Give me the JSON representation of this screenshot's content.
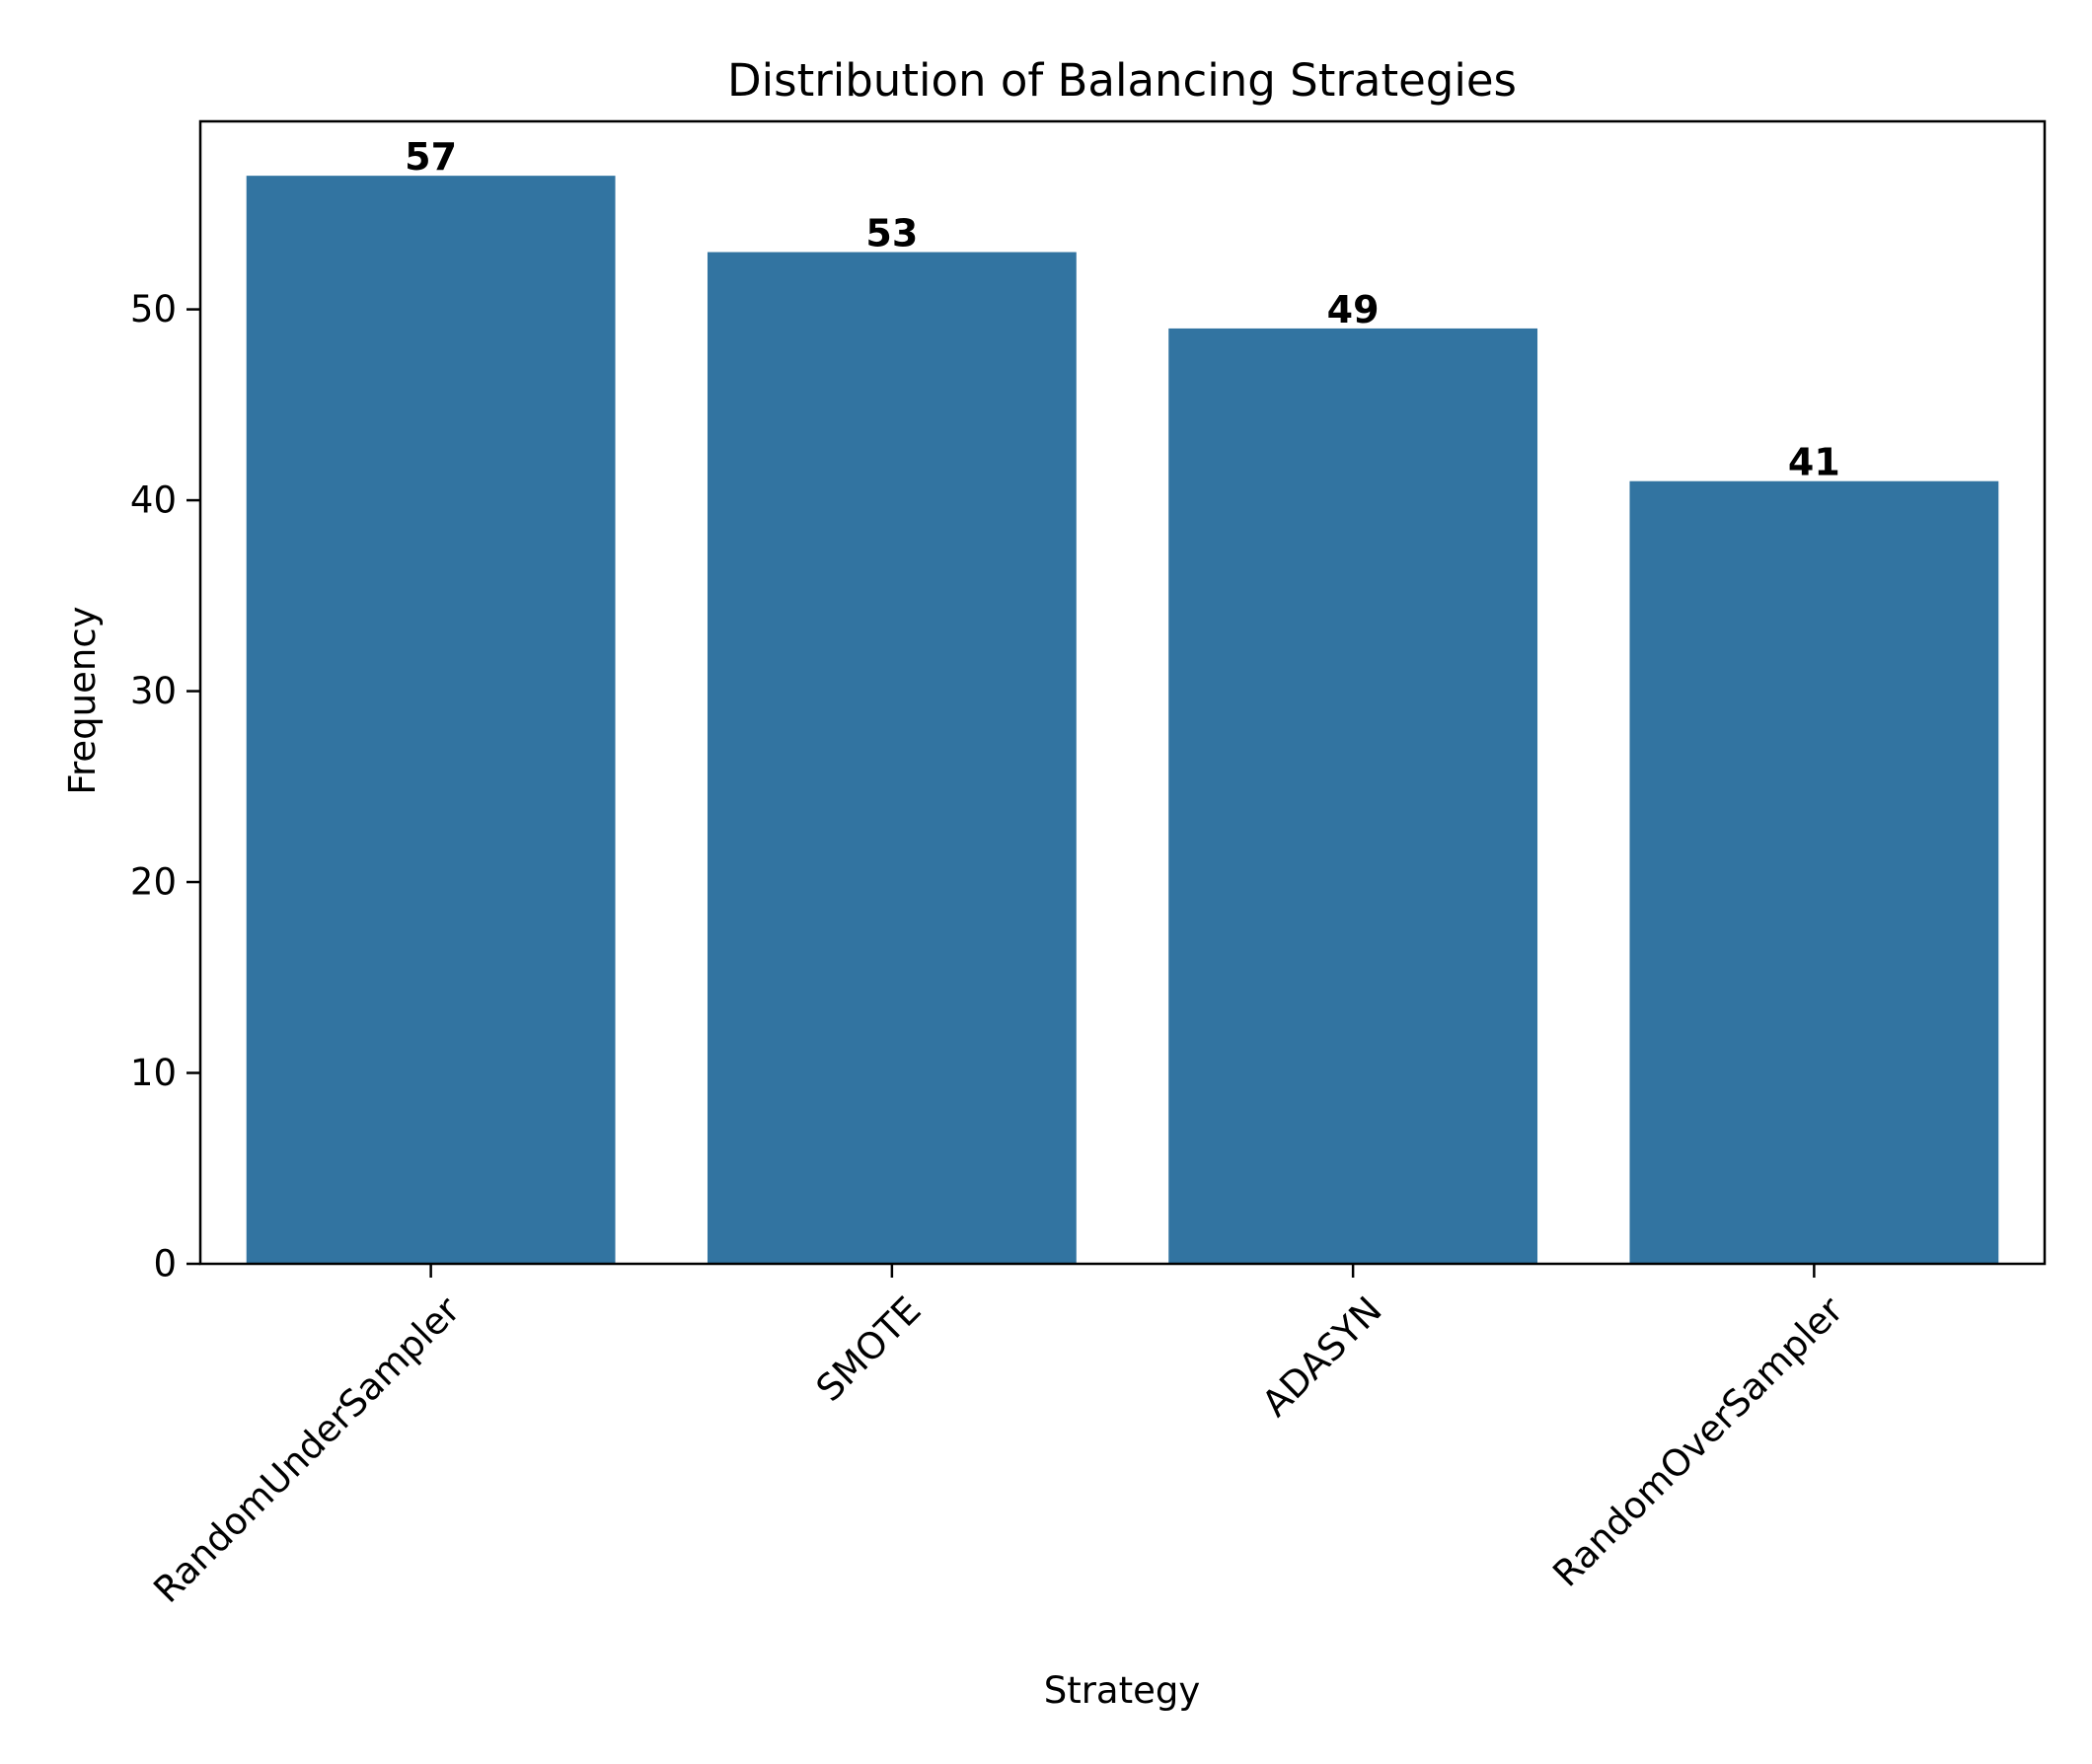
{
  "chart_data": {
    "type": "bar",
    "title": "Distribution of Balancing Strategies",
    "xlabel": "Strategy",
    "ylabel": "Frequency",
    "categories": [
      "RandomUnderSampler",
      "SMOTE",
      "ADASYN",
      "RandomOverSampler"
    ],
    "values": [
      57,
      53,
      49,
      41
    ],
    "data_labels": [
      "57",
      "53",
      "49",
      "41"
    ],
    "ylim": [
      0,
      59.85
    ],
    "yticks": [
      0,
      10,
      20,
      30,
      40,
      50
    ],
    "grid": false,
    "legend": "none",
    "bar_color": "#3274a1",
    "xtick_rotation_deg": 45
  }
}
